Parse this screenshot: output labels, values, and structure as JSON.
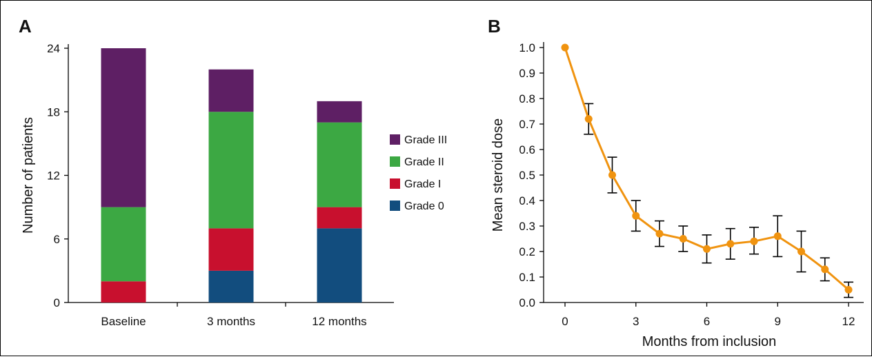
{
  "panel_a_label": "A",
  "panel_b_label": "B",
  "chart_data": [
    {
      "type": "bar",
      "stacked": true,
      "categories": [
        "Baseline",
        "3 months",
        "12 months"
      ],
      "series": [
        {
          "name": "Grade 0",
          "color": "#124d7e",
          "values": [
            0,
            3,
            7
          ]
        },
        {
          "name": "Grade I",
          "color": "#c8102e",
          "values": [
            2,
            4,
            2
          ]
        },
        {
          "name": "Grade II",
          "color": "#3ca843",
          "values": [
            7,
            11,
            8
          ]
        },
        {
          "name": "Grade III",
          "color": "#5e1f64",
          "values": [
            15,
            4,
            2
          ]
        }
      ],
      "ylabel": "Number of patients",
      "xlabel": "",
      "ylim": [
        0,
        24
      ],
      "yticks": [
        0,
        6,
        12,
        18,
        24
      ],
      "legend_position": "right",
      "legend_order": [
        "Grade III",
        "Grade II",
        "Grade I",
        "Grade 0"
      ]
    },
    {
      "type": "line",
      "x": [
        0,
        1,
        2,
        3,
        4,
        5,
        6,
        7,
        8,
        9,
        10,
        11,
        12
      ],
      "series": [
        {
          "color": "#f0930f",
          "values": [
            1.0,
            0.72,
            0.5,
            0.34,
            0.27,
            0.25,
            0.21,
            0.23,
            0.24,
            0.26,
            0.2,
            0.13,
            0.05
          ],
          "error_upper": [
            1.0,
            0.78,
            0.57,
            0.4,
            0.32,
            0.3,
            0.265,
            0.29,
            0.295,
            0.34,
            0.28,
            0.175,
            0.08
          ],
          "error_lower": [
            1.0,
            0.66,
            0.43,
            0.28,
            0.22,
            0.2,
            0.155,
            0.17,
            0.19,
            0.18,
            0.12,
            0.085,
            0.02
          ]
        }
      ],
      "xlabel": "Months from inclusion",
      "ylabel": "Mean steroid dose",
      "xlim": [
        0,
        12
      ],
      "ylim": [
        0,
        1.0
      ],
      "xticks": [
        0,
        3,
        6,
        9,
        12
      ],
      "yticks": [
        "0.0",
        "0.1",
        "0.2",
        "0.3",
        "0.4",
        "0.5",
        "0.6",
        "0.7",
        "0.8",
        "0.9",
        "1.0"
      ]
    }
  ]
}
